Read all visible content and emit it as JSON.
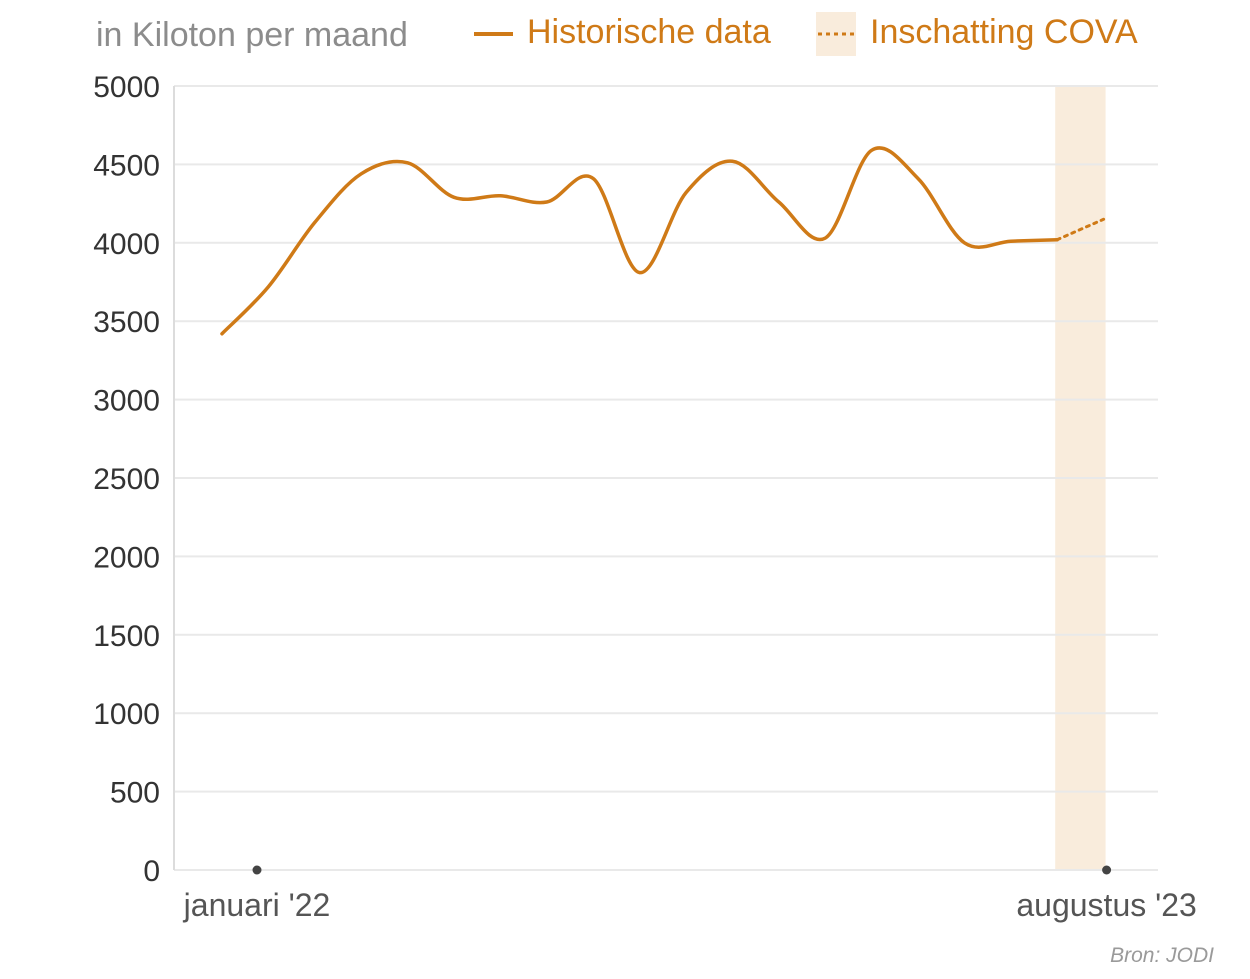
{
  "chart_data": {
    "type": "line",
    "unit_label": "in Kiloton per maand",
    "legend": {
      "historical": "Historische data",
      "estimate": "Inschatting COVA"
    },
    "ylim": [
      0,
      5000
    ],
    "yticks": [
      "0",
      "500",
      "1000",
      "1500",
      "2000",
      "2500",
      "3000",
      "3500",
      "4000",
      "4500",
      "5000"
    ],
    "x_labels": [
      {
        "month_index": 0,
        "label": "januari '22"
      },
      {
        "month_index": 19,
        "label": "augustus '23"
      }
    ],
    "series": [
      {
        "name": "Historische data",
        "style": "solid",
        "color": "#cf7a17",
        "points": [
          {
            "month_index": 0,
            "value": 3420
          },
          {
            "month_index": 1,
            "value": 3720
          },
          {
            "month_index": 2,
            "value": 4130
          },
          {
            "month_index": 3,
            "value": 4440
          },
          {
            "month_index": 4,
            "value": 4510
          },
          {
            "month_index": 5,
            "value": 4290
          },
          {
            "month_index": 6,
            "value": 4300
          },
          {
            "month_index": 7,
            "value": 4260
          },
          {
            "month_index": 8,
            "value": 4410
          },
          {
            "month_index": 9,
            "value": 3810
          },
          {
            "month_index": 10,
            "value": 4320
          },
          {
            "month_index": 11,
            "value": 4520
          },
          {
            "month_index": 12,
            "value": 4260
          },
          {
            "month_index": 13,
            "value": 4030
          },
          {
            "month_index": 14,
            "value": 4590
          },
          {
            "month_index": 15,
            "value": 4410
          },
          {
            "month_index": 16,
            "value": 4000
          },
          {
            "month_index": 17,
            "value": 4010
          },
          {
            "month_index": 18,
            "value": 4020
          }
        ]
      },
      {
        "name": "Inschatting COVA",
        "style": "dotted",
        "color": "#cf7a17",
        "points": [
          {
            "month_index": 18,
            "value": 4020
          },
          {
            "month_index": 19,
            "value": 4150
          }
        ]
      }
    ],
    "highlight_band": {
      "from_month_index": 18,
      "to_month_index": 19,
      "color": "#f9ecdc"
    },
    "source": "Bron: JODI"
  }
}
